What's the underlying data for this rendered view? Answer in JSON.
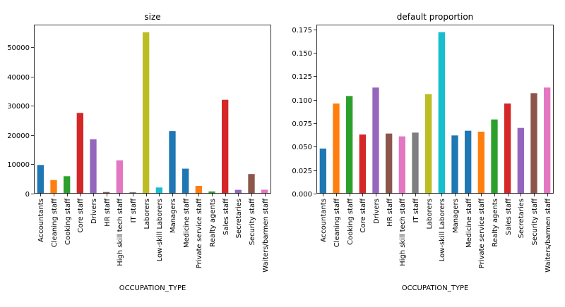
{
  "chart_data": [
    {
      "type": "bar",
      "title": "size",
      "xlabel": "OCCUPATION_TYPE",
      "ylabel": "",
      "ylim": [
        0,
        57800
      ],
      "yticks": [
        0,
        10000,
        20000,
        30000,
        40000,
        50000
      ],
      "ytick_labels": [
        "0",
        "10000",
        "20000",
        "30000",
        "40000",
        "50000"
      ],
      "categories": [
        "Accountants",
        "Cleaning staff",
        "Cooking staff",
        "Core staff",
        "Drivers",
        "HR staff",
        "High skill tech staff",
        "IT staff",
        "Laborers",
        "Low-skill Laborers",
        "Managers",
        "Medicine staff",
        "Private service staff",
        "Realty agents",
        "Sales staff",
        "Secretaries",
        "Security staff",
        "Waiters/barmen staff"
      ],
      "values": [
        9800,
        4650,
        5950,
        27600,
        18600,
        560,
        11400,
        530,
        55200,
        2100,
        21400,
        8540,
        2650,
        750,
        32100,
        1300,
        6700,
        1350
      ],
      "colors": [
        "#1f77b4",
        "#ff7f0e",
        "#2ca02c",
        "#d62728",
        "#9467bd",
        "#8c564b",
        "#e377c2",
        "#7f7f7f",
        "#bcbd22",
        "#17becf",
        "#1f77b4",
        "#1f77b4",
        "#ff7f0e",
        "#2ca02c",
        "#d62728",
        "#9467bd",
        "#8c564b",
        "#e377c2"
      ]
    },
    {
      "type": "bar",
      "title": "default proportion",
      "xlabel": "OCCUPATION_TYPE",
      "ylabel": "",
      "ylim": [
        0,
        0.18
      ],
      "yticks": [
        0,
        0.025,
        0.05,
        0.075,
        0.1,
        0.125,
        0.15,
        0.175
      ],
      "ytick_labels": [
        "0.000",
        "0.025",
        "0.050",
        "0.075",
        "0.100",
        "0.125",
        "0.150",
        "0.175"
      ],
      "categories": [
        "Accountants",
        "Cleaning staff",
        "Cooking staff",
        "Core staff",
        "Drivers",
        "HR staff",
        "High skill tech staff",
        "IT staff",
        "Laborers",
        "Low-skill Laborers",
        "Managers",
        "Medicine staff",
        "Private service staff",
        "Realty agents",
        "Sales staff",
        "Secretaries",
        "Security staff",
        "Waiters/barmen staff"
      ],
      "values": [
        0.048,
        0.096,
        0.104,
        0.063,
        0.113,
        0.064,
        0.061,
        0.065,
        0.106,
        0.172,
        0.062,
        0.067,
        0.066,
        0.079,
        0.096,
        0.07,
        0.107,
        0.113
      ],
      "colors": [
        "#1f77b4",
        "#ff7f0e",
        "#2ca02c",
        "#d62728",
        "#9467bd",
        "#8c564b",
        "#e377c2",
        "#7f7f7f",
        "#bcbd22",
        "#17becf",
        "#1f77b4",
        "#1f77b4",
        "#ff7f0e",
        "#2ca02c",
        "#d62728",
        "#9467bd",
        "#8c564b",
        "#e377c2"
      ]
    }
  ]
}
